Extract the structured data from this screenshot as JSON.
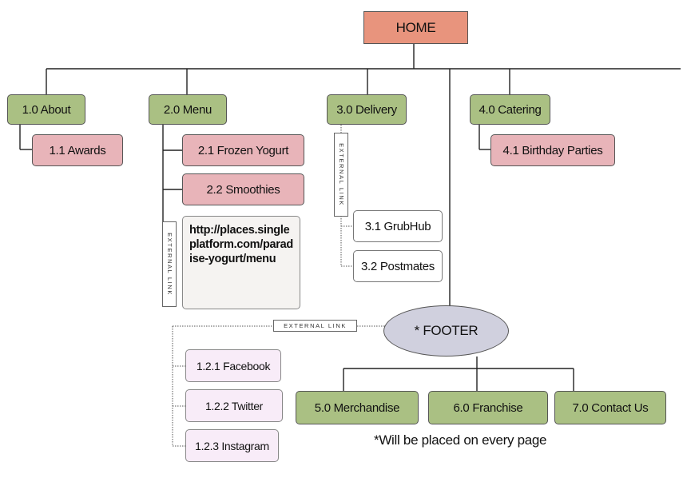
{
  "nodes": {
    "home": "HOME",
    "about": "1.0 About",
    "awards": "1.1 Awards",
    "menu": "2.0 Menu",
    "frozen_yogurt": "2.1 Frozen Yogurt",
    "smoothies": "2.2 Smoothies",
    "menu_url": "http://places.singleplatform.com/paradise-yogurt/menu",
    "delivery": "3.0 Delivery",
    "grubhub": "3.1 GrubHub",
    "postmates": "3.2 Postmates",
    "catering": "4.0 Catering",
    "birthday_parties": "4.1 Birthday Parties",
    "footer": "* FOOTER",
    "facebook": "1.2.1 Facebook",
    "twitter": "1.2.2 Twitter",
    "instagram": "1.2.3 Instagram",
    "merchandise": "5.0 Merchandise",
    "franchise": "6.0 Franchise",
    "contact_us": "7.0 Contact Us"
  },
  "labels": {
    "external_link": "EXTERNAL LINK"
  },
  "note": "*Will be placed on every page",
  "colors": {
    "home": "#e8947d",
    "section": "#aac083",
    "subpage": "#e8b4b9",
    "footer": "#d0d0de",
    "social": "#f8ecf8"
  }
}
